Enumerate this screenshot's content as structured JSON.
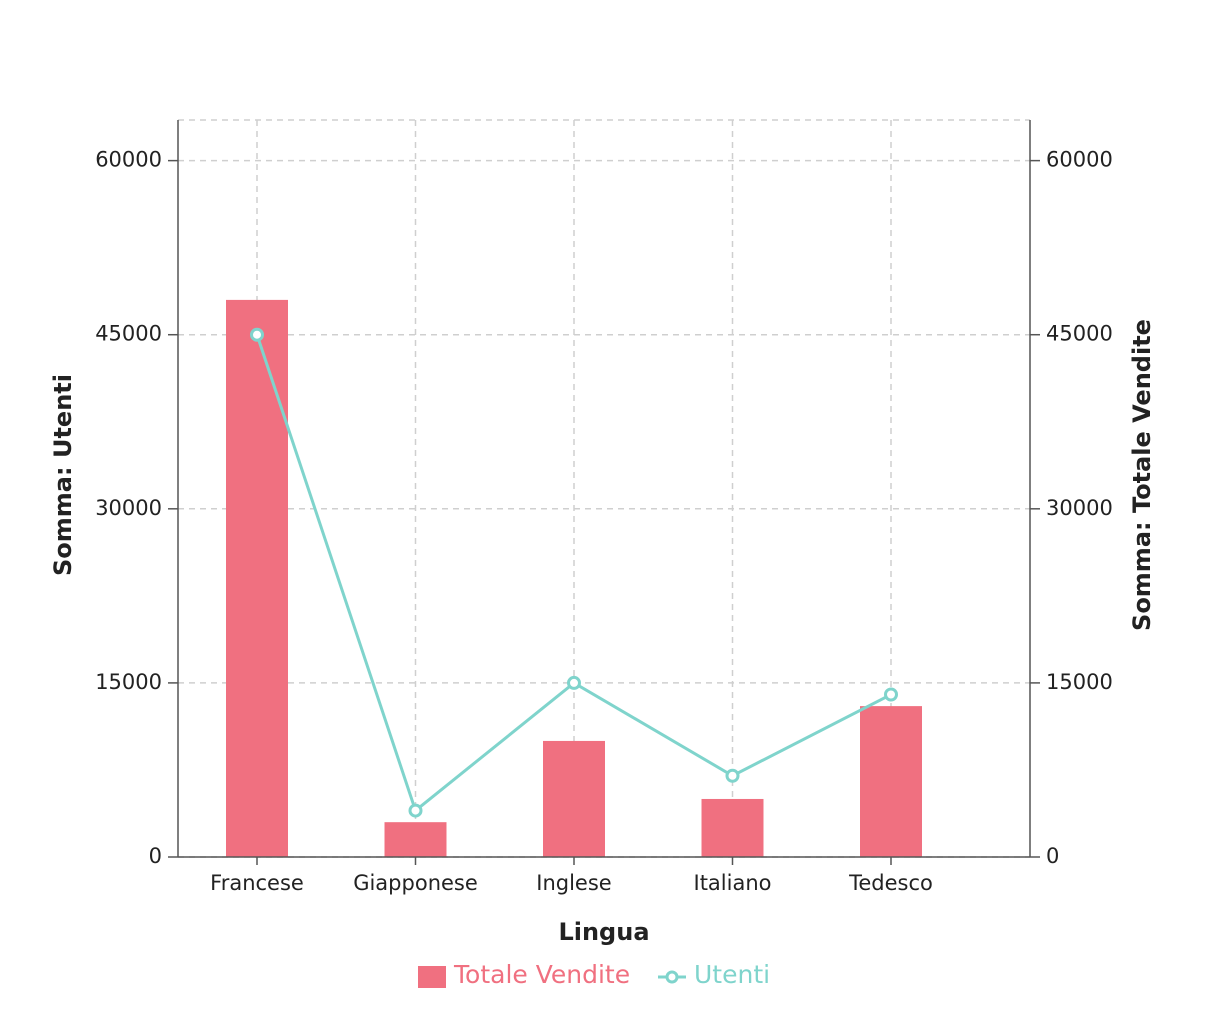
{
  "chart_data": {
    "type": "combo",
    "x_label": "Lingua",
    "y_label": "Somma: Utenti",
    "y2_label": "Somma: Totale Vendite",
    "categories": [
      "Francese",
      "Giapponese",
      "Inglese",
      "Italiano",
      "Tedesco"
    ],
    "series": [
      {
        "name": "Totale Vendite",
        "type": "bar",
        "color": "#f07080",
        "axis": "y2",
        "values": [
          48000,
          3000,
          10000,
          5000,
          13000
        ]
      },
      {
        "name": "Utenti",
        "type": "line",
        "color": "#7fd4cc",
        "values": [
          45000,
          4000,
          15000,
          7000,
          14000
        ]
      }
    ],
    "ylim": [
      0,
      63500
    ],
    "yticks": [
      0,
      15000,
      30000,
      45000,
      60000
    ],
    "y2lim": [
      0,
      63500
    ],
    "y2ticks": [
      0,
      15000,
      30000,
      45000,
      60000
    ],
    "grid": true
  }
}
